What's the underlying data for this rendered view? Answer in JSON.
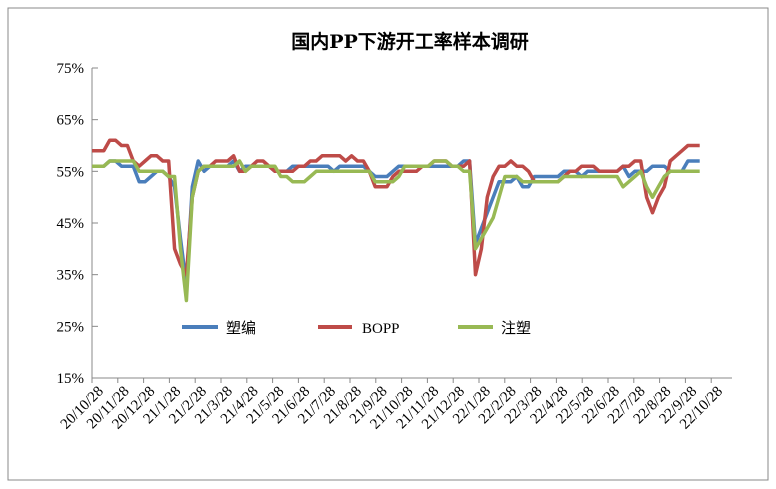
{
  "chart_data": {
    "type": "line",
    "title": "国内PP下游开工率样本调研",
    "xlabel": "",
    "ylabel": "",
    "ylim": [
      15,
      75
    ],
    "y_ticks": [
      "15%",
      "25%",
      "35%",
      "45%",
      "55%",
      "65%",
      "75%"
    ],
    "y_tick_values": [
      15,
      25,
      35,
      45,
      55,
      65,
      75
    ],
    "x_tick_labels": [
      "20/10/28",
      "20/11/28",
      "20/12/28",
      "21/1/28",
      "21/2/28",
      "21/3/28",
      "21/4/28",
      "21/5/28",
      "21/6/28",
      "21/7/28",
      "21/8/28",
      "21/9/28",
      "21/10/28",
      "21/11/28",
      "21/12/28",
      "22/1/28",
      "22/2/28",
      "22/3/28",
      "22/4/28",
      "22/5/28",
      "22/6/28",
      "22/7/28",
      "22/8/28",
      "22/9/28",
      "22/10/28"
    ],
    "x_unit": "weekly observations starting 20/10/28",
    "grid": false,
    "legend_placement": "bottom-center inside plot",
    "series": [
      {
        "name": "塑编",
        "color": "#4a7ebb",
        "values": [
          56,
          56,
          56,
          57,
          57,
          56,
          56,
          56,
          53,
          53,
          54,
          55,
          55,
          54,
          52,
          42,
          33,
          52,
          57,
          55,
          56,
          56,
          56,
          56,
          57,
          55,
          56,
          56,
          56,
          56,
          56,
          55,
          55,
          55,
          56,
          56,
          56,
          56,
          56,
          56,
          56,
          55,
          56,
          56,
          56,
          56,
          56,
          55,
          54,
          54,
          54,
          55,
          56,
          56,
          56,
          56,
          56,
          56,
          56,
          56,
          56,
          56,
          56,
          57,
          57,
          41,
          44,
          47,
          50,
          53,
          53,
          53,
          54,
          52,
          52,
          54,
          54,
          54,
          54,
          54,
          55,
          55,
          55,
          54,
          55,
          55,
          55,
          55,
          55,
          55,
          56,
          54,
          55,
          55,
          55,
          56,
          56,
          56,
          55,
          55,
          55,
          57,
          57,
          57
        ]
      },
      {
        "name": "BOPP",
        "color": "#be4b48",
        "values": [
          59,
          59,
          59,
          61,
          61,
          60,
          60,
          57,
          56,
          57,
          58,
          58,
          57,
          57,
          40,
          37,
          35,
          50,
          55,
          56,
          56,
          57,
          57,
          57,
          58,
          55,
          55,
          56,
          57,
          57,
          56,
          55,
          55,
          55,
          55,
          56,
          56,
          57,
          57,
          58,
          58,
          58,
          58,
          57,
          58,
          57,
          57,
          55,
          52,
          52,
          52,
          54,
          55,
          55,
          55,
          55,
          56,
          56,
          57,
          57,
          57,
          56,
          56,
          56,
          57,
          35,
          40,
          50,
          54,
          56,
          56,
          57,
          56,
          56,
          55,
          53,
          53,
          53,
          53,
          53,
          54,
          55,
          55,
          56,
          56,
          56,
          55,
          55,
          55,
          55,
          56,
          56,
          57,
          57,
          50,
          47,
          50,
          52,
          57,
          58,
          59,
          60,
          60,
          60
        ]
      },
      {
        "name": "注塑",
        "color": "#98b954",
        "values": [
          56,
          56,
          56,
          57,
          57,
          57,
          57,
          57,
          55,
          55,
          55,
          55,
          55,
          54,
          54,
          40,
          30,
          50,
          55,
          56,
          56,
          56,
          56,
          56,
          56,
          57,
          55,
          56,
          56,
          56,
          56,
          56,
          54,
          54,
          53,
          53,
          53,
          54,
          55,
          55,
          55,
          55,
          55,
          55,
          55,
          55,
          55,
          55,
          53,
          53,
          53,
          53,
          54,
          56,
          56,
          56,
          56,
          56,
          57,
          57,
          57,
          56,
          56,
          55,
          55,
          40,
          42,
          44,
          46,
          50,
          54,
          54,
          54,
          53,
          53,
          53,
          53,
          53,
          53,
          53,
          54,
          54,
          54,
          54,
          54,
          54,
          54,
          54,
          54,
          54,
          52,
          53,
          54,
          55,
          52,
          50,
          52,
          54,
          55,
          55,
          55,
          55,
          55,
          55
        ]
      }
    ]
  }
}
